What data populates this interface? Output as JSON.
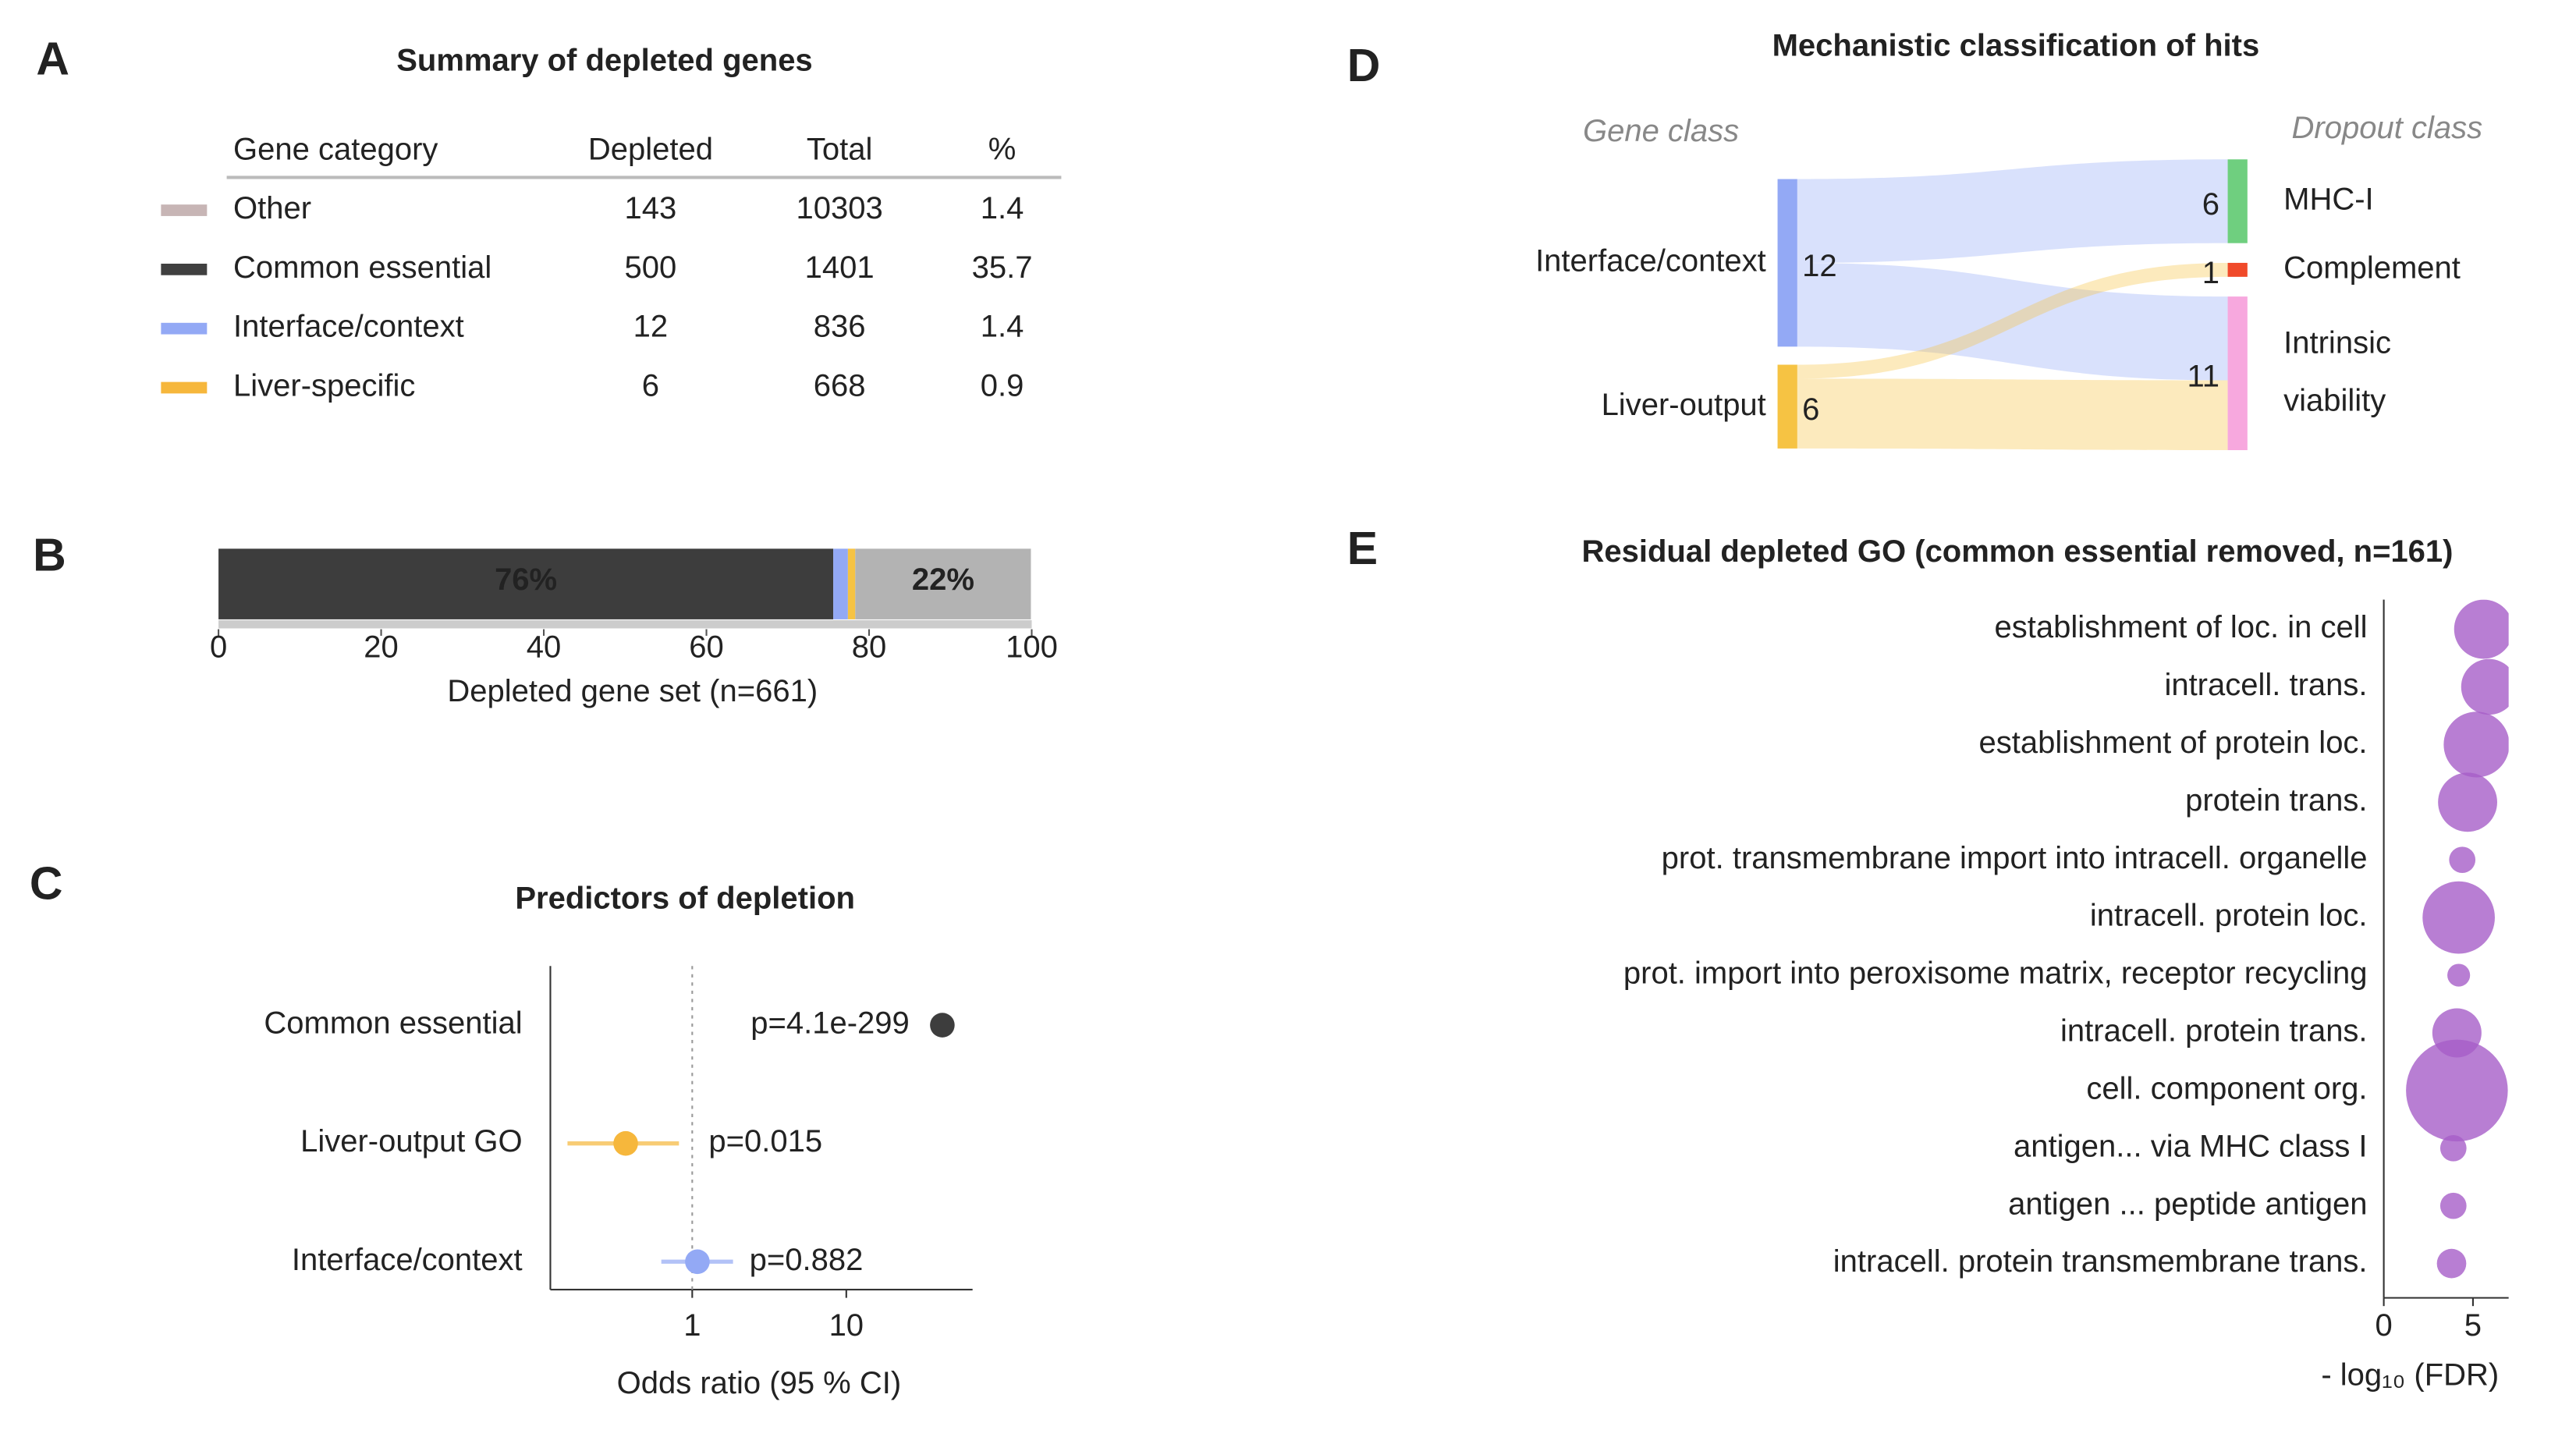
{
  "chart_data": [
    {
      "type": "table",
      "panel": "A",
      "title": "Summary of depleted genes",
      "columns": [
        "Gene category",
        "Depleted",
        "Total",
        "%"
      ],
      "rows": [
        [
          "Other",
          143,
          10303,
          1.4
        ],
        [
          "Common essential",
          500,
          1401,
          35.7
        ],
        [
          "Interface/context",
          12,
          836,
          1.4
        ],
        [
          "Liver-specific",
          6,
          668,
          0.9
        ]
      ],
      "colors": [
        "#c7b5b5",
        "#404040",
        "#93a9f5",
        "#f6b73c"
      ]
    },
    {
      "type": "stacked_bar",
      "panel": "B",
      "xlabel": "Depleted gene set (n=661)",
      "series": [
        {
          "color": "#3d3d3d",
          "values": [
            75.6
          ],
          "value_labels": [
            "76%"
          ]
        },
        {
          "color": "#93a9f5",
          "values": [
            1.8
          ]
        },
        {
          "color": "#f6c343",
          "values": [
            0.9
          ]
        },
        {
          "color": "#b3b3b3",
          "values": [
            21.6
          ],
          "value_labels": [
            "22%"
          ]
        }
      ],
      "xlim": [
        0,
        100
      ],
      "xticks": [
        0,
        20,
        40,
        60,
        80,
        100
      ]
    },
    {
      "type": "forest",
      "panel": "C",
      "title": "Predictors of depletion",
      "xlabel": "Odds ratio (95 % CI)",
      "categories": [
        "Common essential",
        "Liver-output GO",
        "Interface/context"
      ],
      "values": [
        42,
        0.37,
        1.08
      ],
      "lower": [
        38,
        0.155,
        0.63
      ],
      "upper": [
        46,
        0.82,
        1.84
      ],
      "annotations": [
        "p=4.1e-299",
        "p=0.015",
        "p=0.882"
      ],
      "colors": [
        "#3d3d3d",
        "#f6b73c",
        "#93a9f5"
      ],
      "log_x": true,
      "xlim": [
        0.12,
        66
      ],
      "xticks": [
        1,
        10
      ],
      "reference_line": 1
    },
    {
      "type": "sankey",
      "panel": "D",
      "title": "Mechanistic classification of hits",
      "left_header": "Gene class",
      "right_header": "Dropout class",
      "left_nodes": [
        {
          "name": "Interface/context",
          "value": 12,
          "color": "#93a9f5"
        },
        {
          "name": "Liver-output",
          "value": 6,
          "color": "#f6c343"
        }
      ],
      "right_nodes": [
        {
          "name": "MHC-I",
          "value": 6,
          "color": "#6fcf7f"
        },
        {
          "name": "Complement",
          "value": 1,
          "color": "#f04a2a"
        },
        {
          "name": "Intrinsic viability",
          "value": 11,
          "color": "#f7a8de"
        }
      ],
      "links": [
        {
          "source": 0,
          "target": 0,
          "value": 6
        },
        {
          "source": 0,
          "target": 2,
          "value": 6
        },
        {
          "source": 1,
          "target": 1,
          "value": 1
        },
        {
          "source": 1,
          "target": 2,
          "value": 5
        }
      ]
    },
    {
      "type": "bubble",
      "panel": "E",
      "title": "Residual depleted GO (common essential removed, n=161)",
      "xlabel": "- log₁₀ (FDR)",
      "categories": [
        "establishment of loc. in cell",
        "intracell. trans.",
        "establishment of protein loc.",
        "protein trans.",
        "prot. transmembrane import into intracell. organelle",
        "intracell. protein loc.",
        "prot. import into peroxisome matrix, receptor recycling",
        "intracell. protein trans.",
        "cell. component org.",
        "antigen... via MHC class I",
        "antigen ... peptide antigen",
        "intracell. protein transmembrane trans."
      ],
      "values": [
        5.6,
        5.9,
        5.2,
        4.7,
        4.4,
        4.2,
        4.2,
        4.1,
        4.1,
        3.9,
        3.9,
        3.8
      ],
      "sizes": [
        81,
        72,
        100,
        81,
        16,
        121,
        12,
        56,
        240,
        16,
        16,
        20
      ],
      "color": "#a65ec8",
      "xlim": [
        0,
        7
      ],
      "xticks": [
        0,
        5
      ]
    }
  ]
}
